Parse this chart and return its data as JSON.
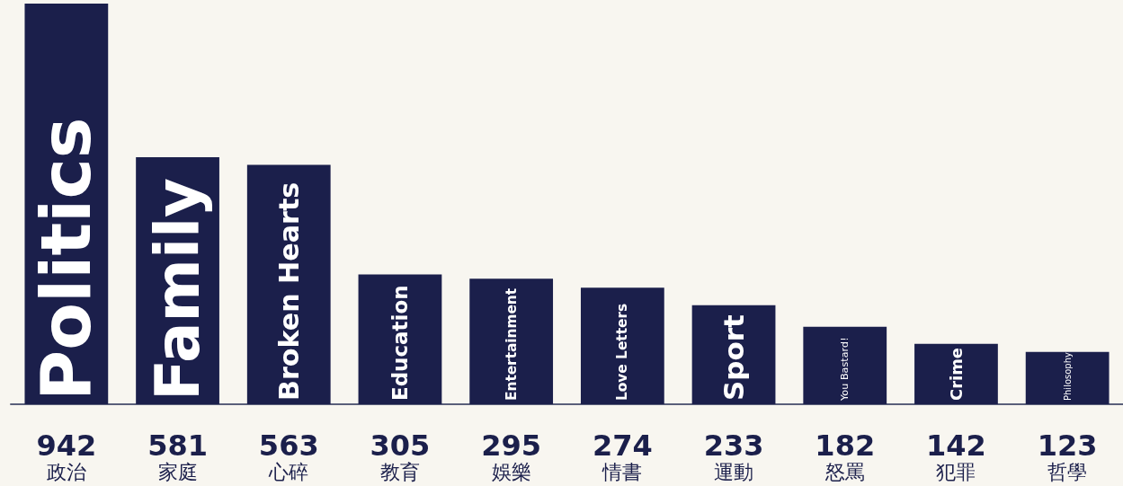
{
  "chart_data": {
    "type": "bar",
    "categories": [
      "政治",
      "家庭",
      "心碎",
      "教育",
      "娛樂",
      "情書",
      "運動",
      "怒罵",
      "犯罪",
      "哲學"
    ],
    "values": [
      942,
      581,
      563,
      305,
      295,
      274,
      233,
      182,
      142,
      123
    ],
    "color": "#1b1f4b",
    "data_labels": true,
    "grid": false,
    "annotations": [
      "Politics",
      "Family",
      "Broken Hearts",
      "Education",
      "Entertainment",
      "Love Letters",
      "Sport",
      "You Bastard!",
      "Crime",
      "Philosophy"
    ]
  }
}
